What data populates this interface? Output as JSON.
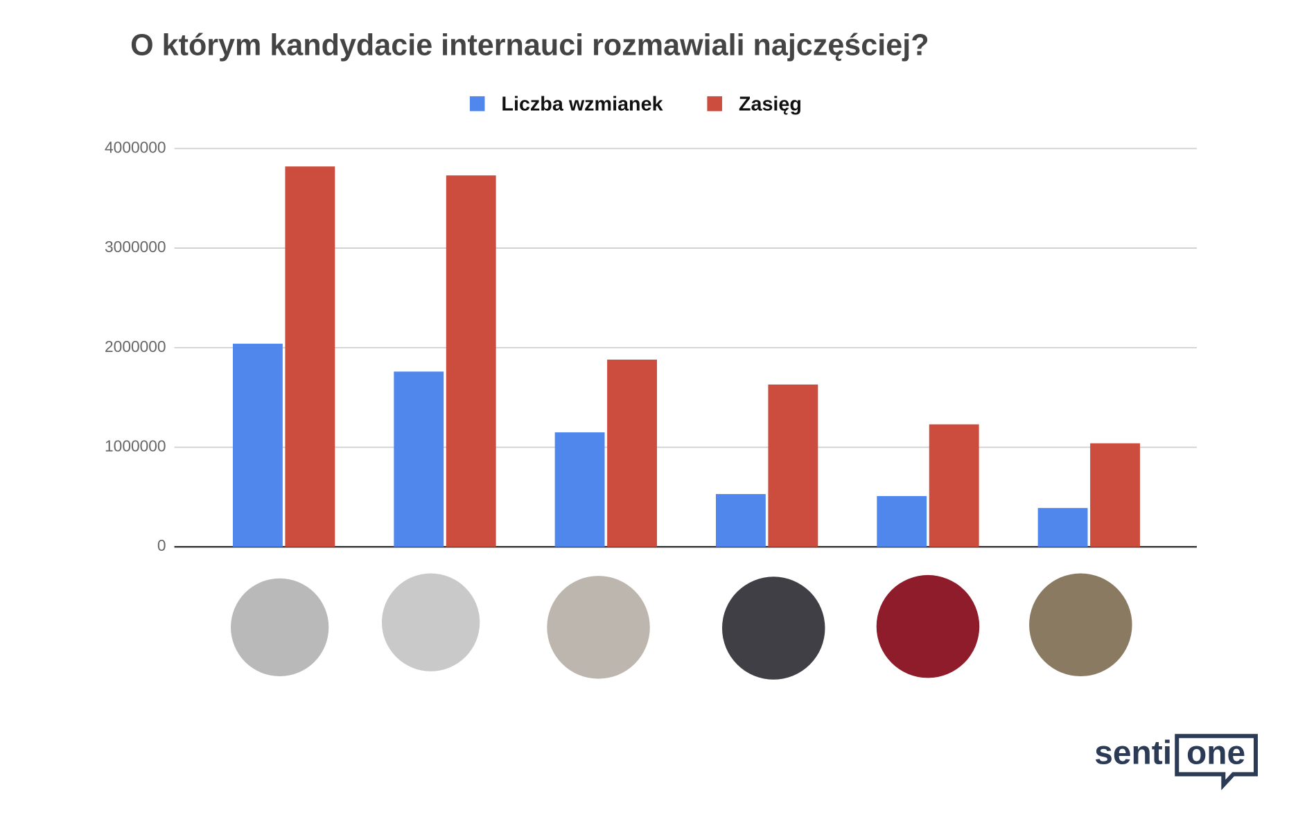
{
  "chart_data": {
    "type": "bar",
    "title": "O którym kandydacie internauci rozmawiali najczęściej?",
    "categories": [
      null,
      null,
      null,
      null,
      null,
      null
    ],
    "series": [
      {
        "name": "Liczba wzmianek",
        "color": "#5087ec",
        "values": [
          2040000,
          1760000,
          1150000,
          530000,
          510000,
          390000
        ]
      },
      {
        "name": "Zasięg",
        "color": "#cc4c3e",
        "values": [
          3820000,
          3730000,
          1880000,
          1630000,
          1230000,
          1040000
        ]
      }
    ],
    "ylim": [
      0,
      4000000
    ],
    "yticks": [
      0,
      1000000,
      2000000,
      3000000,
      4000000
    ],
    "grid": true,
    "legend": "top"
  },
  "branding": {
    "logo_left": "senti",
    "logo_right": "one"
  }
}
